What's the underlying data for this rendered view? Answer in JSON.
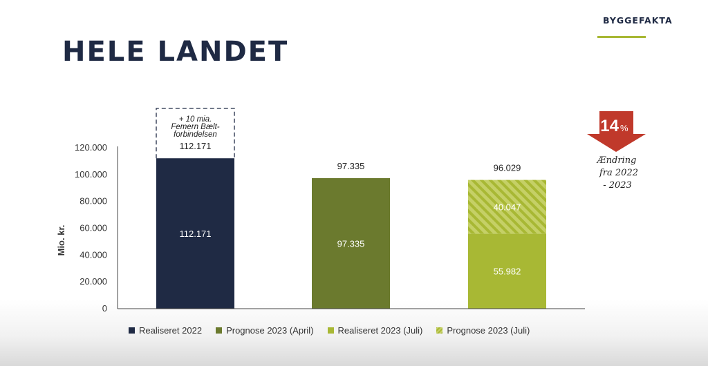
{
  "header": {
    "title": "HELE LANDET",
    "logo_text": "BYGGEFAKTA"
  },
  "colors": {
    "navy": "#1f2a44",
    "olive": "#6b7a2e",
    "lime": "#a8b834",
    "red": "#c0392b"
  },
  "chart_data": {
    "type": "bar",
    "categories": [
      "Realiseret 2022",
      "Prognose 2023 (April)",
      "Realiseret 2023 (Juli)"
    ],
    "series": [
      {
        "name": "Realiseret 2022",
        "values": [
          112171,
          0,
          0
        ],
        "color": "#1f2a44"
      },
      {
        "name": "Prognose 2023 (April)",
        "values": [
          0,
          97335,
          0
        ],
        "color": "#6b7a2e"
      },
      {
        "name": "Realiseret 2023 (Juli)",
        "values": [
          0,
          0,
          55982
        ],
        "color": "#a8b834"
      },
      {
        "name": "Prognose 2023 (Juli)",
        "values": [
          0,
          0,
          40047
        ],
        "color": "#a8b834",
        "pattern": "hatched"
      }
    ],
    "totals": [
      112171,
      97335,
      96029
    ],
    "total_labels": [
      "112.171",
      "97.335",
      "96.029"
    ],
    "segments": [
      {
        "bar": 0,
        "from": 0,
        "to": 112171,
        "fill": "#1f2a44",
        "hatched": false,
        "label": "112.171"
      },
      {
        "bar": 1,
        "from": 0,
        "to": 97335,
        "fill": "#6b7a2e",
        "hatched": false,
        "label": "97.335"
      },
      {
        "bar": 2,
        "from": 0,
        "to": 55982,
        "fill": "#a8b834",
        "hatched": false,
        "label": "55.982"
      },
      {
        "bar": 2,
        "from": 55982,
        "to": 96029,
        "fill": "#a8b834",
        "hatched": true,
        "label": "40.047"
      }
    ],
    "annotation": {
      "bar": 0,
      "lines": [
        "+ 10 mia.",
        "Femern Bælt-",
        "forbindelsen"
      ]
    },
    "yticks": [
      0,
      20000,
      40000,
      60000,
      80000,
      100000,
      120000
    ],
    "ytick_labels": [
      "0",
      "20.000",
      "40.000",
      "60.000",
      "80.000",
      "100.000",
      "120.000"
    ],
    "ylabel": "Mio. kr.",
    "ylim": [
      0,
      120000
    ],
    "grid": false,
    "legend_position": "bottom",
    "legend": [
      {
        "label": "Realiseret 2022",
        "color": "#1f2a44"
      },
      {
        "label": "Prognose 2023 (April)",
        "color": "#6b7a2e"
      },
      {
        "label": "Realiseret 2023 (Juli)",
        "color": "#a8b834"
      },
      {
        "label": "Prognose 2023 (Juli)",
        "color": "#a8b834",
        "hatched": true
      }
    ]
  },
  "change_badge": {
    "value": "14",
    "unit": "%",
    "lines": [
      "Ændring",
      "fra 2022",
      "- 2023"
    ]
  }
}
